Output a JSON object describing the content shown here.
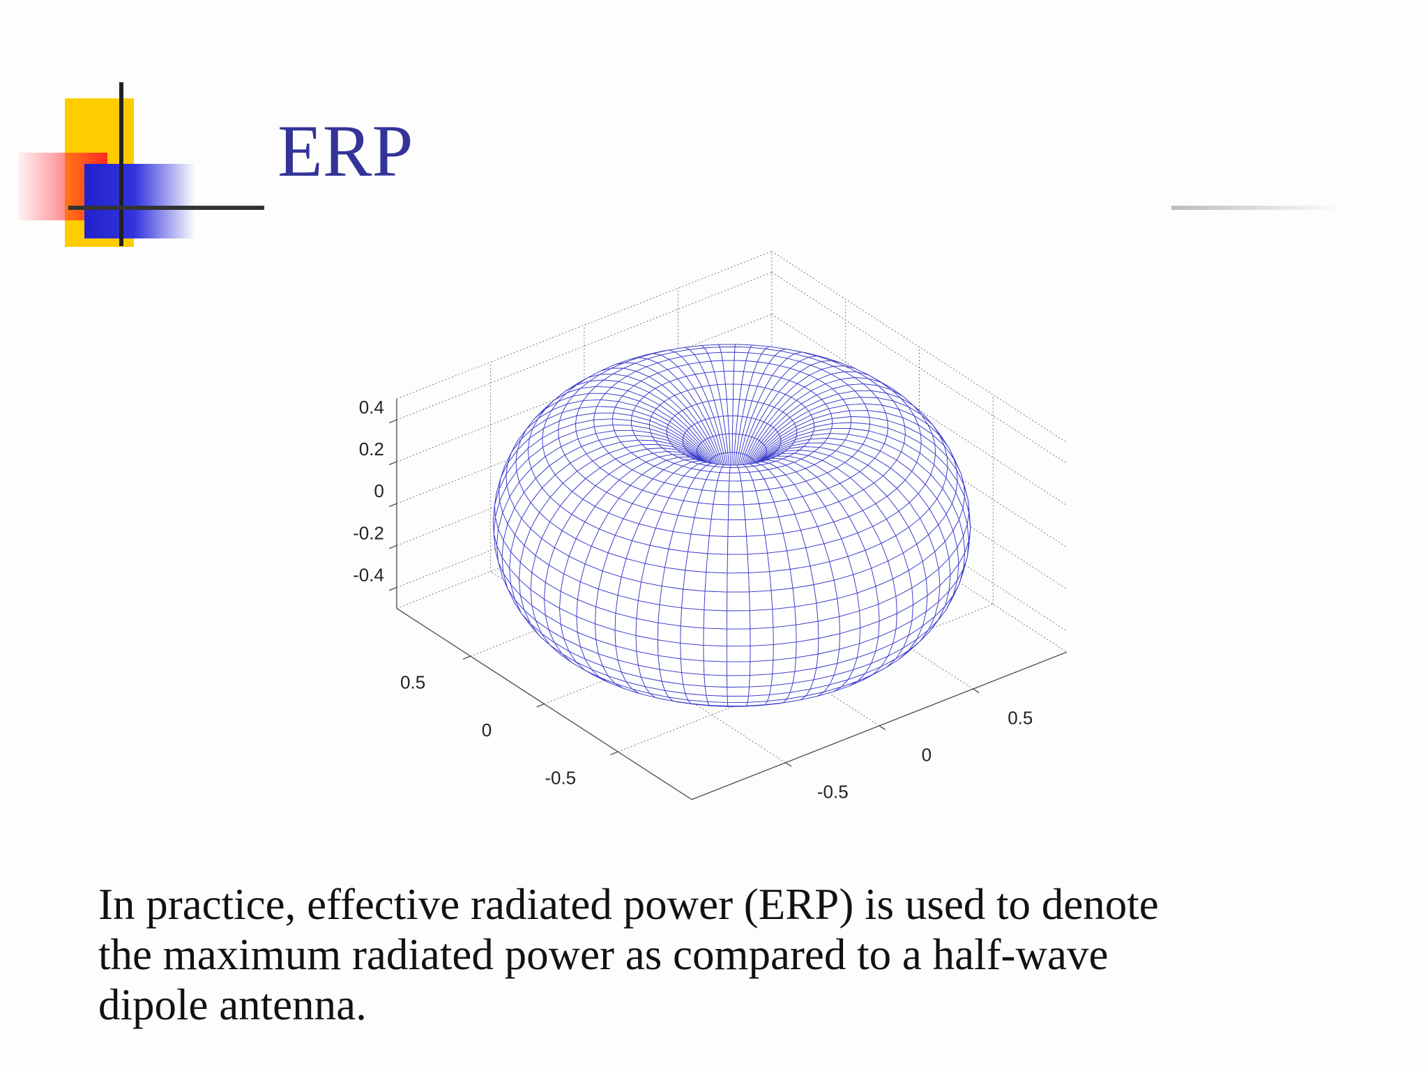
{
  "header": {
    "title": "ERP"
  },
  "chart_data": {
    "type": "mesh3d",
    "color": "#3a3acc",
    "grid": true,
    "xlim": [
      -1,
      1
    ],
    "ylim": [
      -1,
      1
    ],
    "zlim": [
      -0.5,
      0.5
    ],
    "xticks": [
      -0.5,
      0,
      0.5
    ],
    "yticks": [
      -0.5,
      0,
      0.5
    ],
    "zticks": [
      -0.4,
      -0.2,
      0,
      0.2,
      0.4
    ]
  },
  "body": {
    "lines": [
      "In practice, effective radiated power (ERP) is used to denote",
      "the maximum radiated power as compared to a half-wave",
      "dipole antenna."
    ]
  }
}
